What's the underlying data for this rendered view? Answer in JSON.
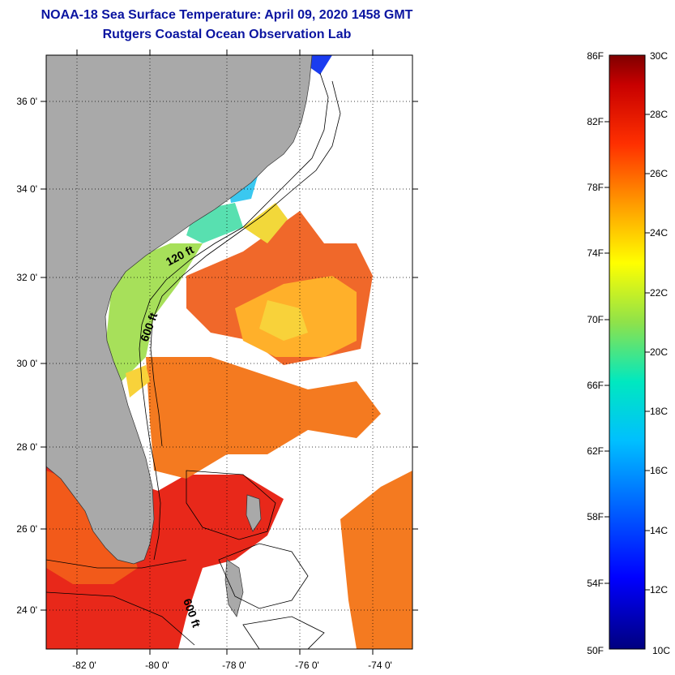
{
  "header": {
    "title": "NOAA-18 Sea Surface Temperature:  April 09, 2020 1458 GMT",
    "subtitle": "Rutgers Coastal Ocean Observation Lab"
  },
  "map": {
    "latitude_labels": [
      "36 0'",
      "34 0'",
      "32 0'",
      "30 0'",
      "28 0'",
      "26 0'",
      "24 0'"
    ],
    "longitude_labels": [
      "-82 0'",
      "-80 0'",
      "-78 0'",
      "-76 0'",
      "-74 0'"
    ],
    "contour_labels": [
      "120 ft",
      "600 ft",
      "600 ft"
    ],
    "colors": {
      "land": "#a9a9a9",
      "cloud": "#ffffff"
    }
  },
  "colorbar": {
    "fahrenheit_labels": [
      "86F",
      "82F",
      "78F",
      "74F",
      "70F",
      "66F",
      "62F",
      "58F",
      "54F",
      "50F"
    ],
    "celsius_labels": [
      "30C",
      "28C",
      "26C",
      "24C",
      "22C",
      "20C",
      "18C",
      "16C",
      "14C",
      "12C",
      "10C"
    ]
  }
}
